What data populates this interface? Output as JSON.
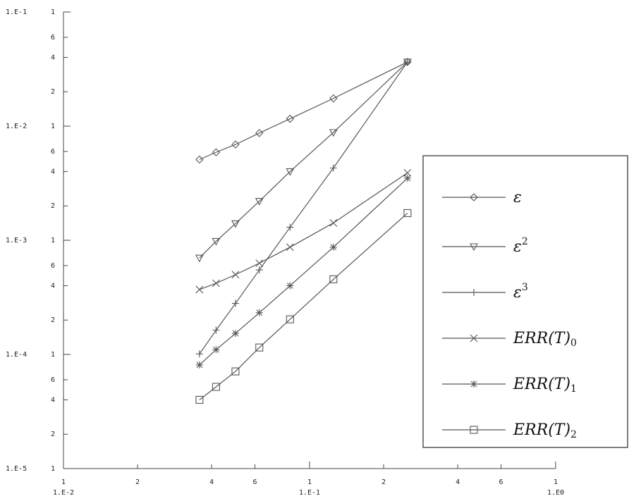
{
  "chart_data": {
    "type": "line",
    "title": "",
    "xlabel": "",
    "ylabel": "",
    "xscale": "log",
    "yscale": "log",
    "xlim": [
      0.01,
      1
    ],
    "ylim": [
      1e-05,
      0.1
    ],
    "grid": false,
    "legend_position": "right",
    "x_major_labels": [
      {
        "value": 0.01,
        "top": "1",
        "bottom": "1.E-2"
      },
      {
        "value": 0.1,
        "top": "1",
        "bottom": "1.E-1"
      },
      {
        "value": 1,
        "top": "1",
        "bottom": "1.E0"
      }
    ],
    "x_minor_labels": [
      {
        "value": 0.02,
        "label": "2"
      },
      {
        "value": 0.04,
        "label": "4"
      },
      {
        "value": 0.06,
        "label": "6"
      },
      {
        "value": 0.2,
        "label": "2"
      },
      {
        "value": 0.4,
        "label": "4"
      },
      {
        "value": 0.6,
        "label": "6"
      }
    ],
    "y_major_labels": [
      {
        "value": 0.1,
        "left": "1.E-1",
        "right": "1"
      },
      {
        "value": 0.01,
        "left": "1.E-2",
        "right": "1"
      },
      {
        "value": 0.001,
        "left": "1.E-3",
        "right": "1"
      },
      {
        "value": 0.0001,
        "left": "1.E-4",
        "right": "1"
      },
      {
        "value": 1e-05,
        "left": "1.E-5",
        "right": "1"
      }
    ],
    "y_minor_labels": [
      {
        "value": 0.06,
        "label": "6"
      },
      {
        "value": 0.04,
        "label": "4"
      },
      {
        "value": 0.02,
        "label": "2"
      },
      {
        "value": 0.006,
        "label": "6"
      },
      {
        "value": 0.004,
        "label": "4"
      },
      {
        "value": 0.002,
        "label": "2"
      },
      {
        "value": 0.0006,
        "label": "6"
      },
      {
        "value": 0.0004,
        "label": "4"
      },
      {
        "value": 0.0002,
        "label": "2"
      },
      {
        "value": 6e-05,
        "label": "6"
      },
      {
        "value": 4e-05,
        "label": "4"
      },
      {
        "value": 2e-05,
        "label": "2"
      }
    ],
    "x": [
      0.0357,
      0.0417,
      0.05,
      0.0625,
      0.0833,
      0.125,
      0.25
    ],
    "series": [
      {
        "legend_base": "ε",
        "legend_sup": "",
        "legend_sub": "",
        "marker": "diamond",
        "values": [
          0.0051,
          0.0059,
          0.0069,
          0.0087,
          0.0116,
          0.0175,
          0.0365
        ]
      },
      {
        "legend_base": "ε",
        "legend_sup": "2",
        "legend_sub": "",
        "marker": "triangle-down",
        "values": [
          0.0007,
          0.00098,
          0.0014,
          0.0022,
          0.004,
          0.0088,
          0.0365
        ]
      },
      {
        "legend_base": "ε",
        "legend_sup": "3",
        "legend_sub": "",
        "marker": "plus",
        "values": [
          0.000101,
          0.000163,
          0.00028,
          0.00055,
          0.0013,
          0.0043,
          0.0365
        ]
      },
      {
        "legend_base": "ERR(T)",
        "legend_sup": "",
        "legend_sub": "0",
        "marker": "x",
        "values": [
          0.00037,
          0.00042,
          0.0005,
          0.00063,
          0.00087,
          0.00142,
          0.0039
        ]
      },
      {
        "legend_base": "ERR(T)",
        "legend_sup": "",
        "legend_sub": "1",
        "marker": "star",
        "values": [
          8.1e-05,
          0.00011,
          0.000153,
          0.000232,
          0.0004,
          0.00087,
          0.0035
        ]
      },
      {
        "legend_base": "ERR(T)",
        "legend_sup": "",
        "legend_sub": "2",
        "marker": "square",
        "values": [
          4e-05,
          5.2e-05,
          7.1e-05,
          0.000115,
          0.000203,
          0.000455,
          0.00173
        ]
      }
    ]
  }
}
